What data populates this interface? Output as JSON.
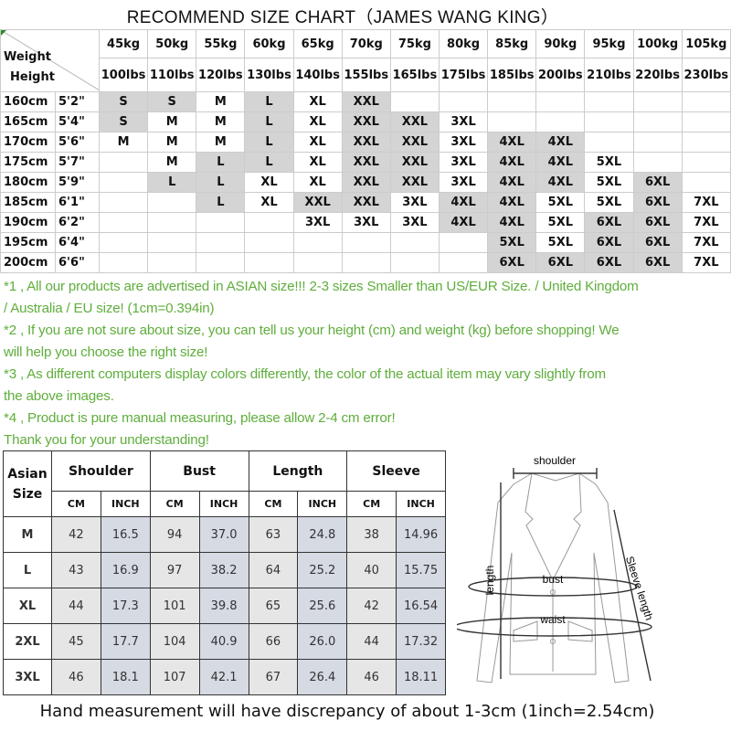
{
  "title": "RECOMMEND SIZE CHART（JAMES WANG KING）",
  "size_chart": {
    "corner_label_weight": "Weight",
    "corner_label_height": "Height",
    "weights_kg": [
      "45kg",
      "50kg",
      "55kg",
      "60kg",
      "65kg",
      "70kg",
      "75kg",
      "80kg",
      "85kg",
      "90kg",
      "95kg",
      "100kg",
      "105kg"
    ],
    "weights_lbs": [
      "100lbs",
      "110lbs",
      "120lbs",
      "130lbs",
      "140lbs",
      "155lbs",
      "165lbs",
      "175lbs",
      "185lbs",
      "200lbs",
      "210lbs",
      "220lbs",
      "230lbs"
    ],
    "shade_color": "#d4d4d4",
    "rows": [
      {
        "cm": "160cm",
        "ft": "5'2\"",
        "sizes": [
          "S",
          "S",
          "M",
          "L",
          "XL",
          "XXL",
          "",
          "",
          "",
          "",
          "",
          "",
          ""
        ],
        "shaded": [
          1,
          1,
          0,
          1,
          0,
          1,
          0,
          0,
          0,
          0,
          0,
          0,
          0
        ]
      },
      {
        "cm": "165cm",
        "ft": "5'4\"",
        "sizes": [
          "S",
          "M",
          "M",
          "L",
          "XL",
          "XXL",
          "XXL",
          "3XL",
          "",
          "",
          "",
          "",
          ""
        ],
        "shaded": [
          1,
          0,
          0,
          1,
          0,
          1,
          1,
          0,
          0,
          0,
          0,
          0,
          0
        ]
      },
      {
        "cm": "170cm",
        "ft": "5'6\"",
        "sizes": [
          "M",
          "M",
          "M",
          "L",
          "XL",
          "XXL",
          "XXL",
          "3XL",
          "4XL",
          "4XL",
          "",
          "",
          ""
        ],
        "shaded": [
          0,
          0,
          0,
          1,
          0,
          1,
          1,
          0,
          1,
          1,
          0,
          0,
          0
        ]
      },
      {
        "cm": "175cm",
        "ft": "5'7\"",
        "sizes": [
          "",
          "M",
          "L",
          "L",
          "XL",
          "XXL",
          "XXL",
          "3XL",
          "4XL",
          "4XL",
          "5XL",
          "",
          ""
        ],
        "shaded": [
          0,
          0,
          1,
          1,
          0,
          1,
          1,
          0,
          1,
          1,
          0,
          0,
          0
        ]
      },
      {
        "cm": "180cm",
        "ft": "5'9\"",
        "sizes": [
          "",
          "L",
          "L",
          "XL",
          "XL",
          "XXL",
          "XXL",
          "3XL",
          "4XL",
          "4XL",
          "5XL",
          "6XL",
          ""
        ],
        "shaded": [
          0,
          1,
          1,
          0,
          0,
          1,
          1,
          0,
          1,
          1,
          0,
          1,
          0
        ]
      },
      {
        "cm": "185cm",
        "ft": "6'1\"",
        "sizes": [
          "",
          "",
          "L",
          "XL",
          "XXL",
          "XXL",
          "3XL",
          "4XL",
          "4XL",
          "5XL",
          "5XL",
          "6XL",
          "7XL"
        ],
        "shaded": [
          0,
          0,
          1,
          0,
          1,
          1,
          0,
          1,
          1,
          0,
          0,
          1,
          0
        ]
      },
      {
        "cm": "190cm",
        "ft": "6'2\"",
        "sizes": [
          "",
          "",
          "",
          "",
          "3XL",
          "3XL",
          "3XL",
          "4XL",
          "4XL",
          "5XL",
          "6XL",
          "6XL",
          "7XL"
        ],
        "shaded": [
          0,
          0,
          0,
          0,
          0,
          0,
          0,
          1,
          1,
          0,
          1,
          1,
          0
        ]
      },
      {
        "cm": "195cm",
        "ft": "6'4\"",
        "sizes": [
          "",
          "",
          "",
          "",
          "",
          "",
          "",
          "",
          "5XL",
          "5XL",
          "6XL",
          "6XL",
          "7XL"
        ],
        "shaded": [
          0,
          0,
          0,
          0,
          0,
          0,
          0,
          0,
          1,
          0,
          1,
          1,
          0
        ]
      },
      {
        "cm": "200cm",
        "ft": "6'6\"",
        "sizes": [
          "",
          "",
          "",
          "",
          "",
          "",
          "",
          "",
          "6XL",
          "6XL",
          "6XL",
          "6XL",
          "7XL"
        ],
        "shaded": [
          0,
          0,
          0,
          0,
          0,
          0,
          0,
          0,
          1,
          1,
          1,
          1,
          0
        ]
      }
    ]
  },
  "notes_color": "#5fae3c",
  "notes": [
    "*1 , All our products are advertised in ASIAN size!!! 2-3 sizes Smaller than US/EUR Size. / United Kingdom",
    "/ Australia / EU size! (1cm=0.394in)",
    "*2 , If you are not sure about size, you can tell us your height (cm) and weight (kg) before shopping! We",
    "will help you choose the right size!",
    "*3 , As different computers display colors differently, the color of the actual item may vary slightly from",
    "the above images.",
    "*4 , Product is pure manual measuring, please allow 2-4 cm error!",
    "Thank you for your understanding!"
  ],
  "measurements": {
    "size_header": "Asian Size",
    "groups": [
      "Shoulder",
      "Bust",
      "Length",
      "Sleeve"
    ],
    "units": [
      "CM",
      "INCH"
    ],
    "rows": [
      {
        "size": "M",
        "values": [
          "42",
          "16.5",
          "94",
          "37.0",
          "63",
          "24.8",
          "38",
          "14.96"
        ]
      },
      {
        "size": "L",
        "values": [
          "43",
          "16.9",
          "97",
          "38.2",
          "64",
          "25.2",
          "40",
          "15.75"
        ]
      },
      {
        "size": "XL",
        "values": [
          "44",
          "17.3",
          "101",
          "39.8",
          "65",
          "25.6",
          "42",
          "16.54"
        ]
      },
      {
        "size": "2XL",
        "values": [
          "45",
          "17.7",
          "104",
          "40.9",
          "66",
          "26.0",
          "44",
          "17.32"
        ]
      },
      {
        "size": "3XL",
        "values": [
          "46",
          "18.1",
          "107",
          "42.1",
          "67",
          "26.4",
          "46",
          "18.11"
        ]
      }
    ]
  },
  "diagram": {
    "shoulder": "shoulder",
    "length": "length",
    "bust": "bust",
    "waist": "waist",
    "sleeve": "Sleeve length"
  },
  "footer": "Hand measurement will have discrepancy of about 1-3cm (1inch=2.54cm)"
}
